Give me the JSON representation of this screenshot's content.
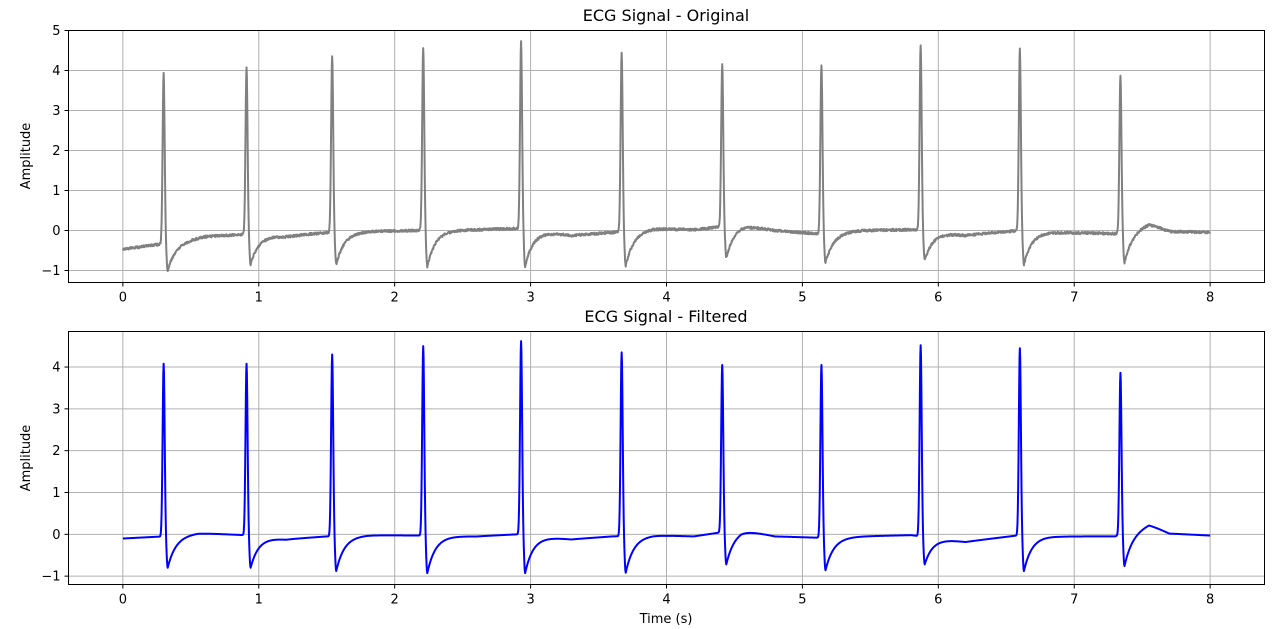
{
  "chart_data": [
    {
      "type": "line",
      "title": "ECG Signal - Original",
      "xlabel": "",
      "ylabel": "Amplitude",
      "xlim": [
        -0.4,
        8.4
      ],
      "ylim": [
        -1.3,
        5.0
      ],
      "xticks": [
        0,
        1,
        2,
        3,
        4,
        5,
        6,
        7,
        8
      ],
      "yticks": [
        -1,
        0,
        1,
        2,
        3,
        4,
        5
      ],
      "grid": true,
      "color": "#808080",
      "series": [
        {
          "beats": [
            {
              "t": 0.3,
              "r": 3.93,
              "s": -1.0
            },
            {
              "t": 0.91,
              "r": 4.07,
              "s": -0.85
            },
            {
              "t": 1.54,
              "r": 4.35,
              "s": -0.85
            },
            {
              "t": 2.21,
              "r": 4.57,
              "s": -0.9
            },
            {
              "t": 2.93,
              "r": 4.72,
              "s": -0.9
            },
            {
              "t": 3.67,
              "r": 4.43,
              "s": -0.88
            },
            {
              "t": 4.41,
              "r": 4.15,
              "s": -0.68
            },
            {
              "t": 5.14,
              "r": 4.14,
              "s": -0.8
            },
            {
              "t": 5.87,
              "r": 4.62,
              "s": -0.75
            },
            {
              "t": 6.6,
              "r": 4.52,
              "s": -0.85
            },
            {
              "t": 7.34,
              "r": 3.86,
              "s": -0.8
            }
          ],
          "baseline": [
            [
              0.0,
              -0.47
            ],
            [
              0.3,
              -0.33
            ],
            [
              0.45,
              -0.25
            ],
            [
              0.6,
              -0.15
            ],
            [
              0.9,
              -0.1
            ],
            [
              1.2,
              -0.15
            ],
            [
              1.5,
              -0.05
            ],
            [
              1.8,
              -0.02
            ],
            [
              2.2,
              0.0
            ],
            [
              2.6,
              0.02
            ],
            [
              2.9,
              0.05
            ],
            [
              3.3,
              -0.12
            ],
            [
              3.6,
              -0.05
            ],
            [
              3.9,
              0.05
            ],
            [
              4.2,
              0.02
            ],
            [
              4.55,
              0.15
            ],
            [
              4.8,
              0.0
            ],
            [
              5.1,
              -0.08
            ],
            [
              5.4,
              0.0
            ],
            [
              5.8,
              0.02
            ],
            [
              6.2,
              -0.12
            ],
            [
              6.6,
              0.0
            ],
            [
              6.9,
              -0.05
            ],
            [
              7.3,
              -0.08
            ],
            [
              7.55,
              0.18
            ],
            [
              7.7,
              -0.02
            ],
            [
              8.0,
              -0.05
            ]
          ]
        }
      ]
    },
    {
      "type": "line",
      "title": "ECG Signal - Filtered",
      "xlabel": "Time (s)",
      "ylabel": "Amplitude",
      "xlim": [
        -0.4,
        8.4
      ],
      "ylim": [
        -1.2,
        4.85
      ],
      "xticks": [
        0,
        1,
        2,
        3,
        4,
        5,
        6,
        7,
        8
      ],
      "yticks": [
        -1,
        0,
        1,
        2,
        3,
        4
      ],
      "grid": true,
      "color": "#0000ff",
      "series": [
        {
          "beats": [
            {
              "t": 0.3,
              "r": 4.08,
              "s": -0.8
            },
            {
              "t": 0.91,
              "r": 4.08,
              "s": -0.8
            },
            {
              "t": 1.54,
              "r": 4.3,
              "s": -0.88
            },
            {
              "t": 2.21,
              "r": 4.5,
              "s": -0.93
            },
            {
              "t": 2.93,
              "r": 4.62,
              "s": -0.93
            },
            {
              "t": 3.67,
              "r": 4.35,
              "s": -0.92
            },
            {
              "t": 4.41,
              "r": 4.05,
              "s": -0.72
            },
            {
              "t": 5.14,
              "r": 4.05,
              "s": -0.86
            },
            {
              "t": 5.87,
              "r": 4.52,
              "s": -0.72
            },
            {
              "t": 6.6,
              "r": 4.45,
              "s": -0.88
            },
            {
              "t": 7.34,
              "r": 3.86,
              "s": -0.76
            }
          ],
          "baseline": [
            [
              0.0,
              -0.1
            ],
            [
              0.3,
              -0.05
            ],
            [
              0.55,
              0.03
            ],
            [
              0.9,
              -0.02
            ],
            [
              1.2,
              -0.12
            ],
            [
              1.5,
              -0.05
            ],
            [
              1.8,
              -0.02
            ],
            [
              2.2,
              -0.03
            ],
            [
              2.6,
              -0.05
            ],
            [
              2.9,
              0.0
            ],
            [
              3.3,
              -0.12
            ],
            [
              3.6,
              -0.05
            ],
            [
              3.9,
              -0.02
            ],
            [
              4.2,
              -0.05
            ],
            [
              4.55,
              0.12
            ],
            [
              4.8,
              -0.05
            ],
            [
              5.1,
              -0.08
            ],
            [
              5.4,
              -0.05
            ],
            [
              5.8,
              -0.02
            ],
            [
              6.2,
              -0.18
            ],
            [
              6.6,
              -0.02
            ],
            [
              6.9,
              -0.05
            ],
            [
              7.3,
              -0.05
            ],
            [
              7.55,
              0.25
            ],
            [
              7.7,
              0.02
            ],
            [
              8.0,
              -0.03
            ]
          ]
        }
      ]
    }
  ]
}
